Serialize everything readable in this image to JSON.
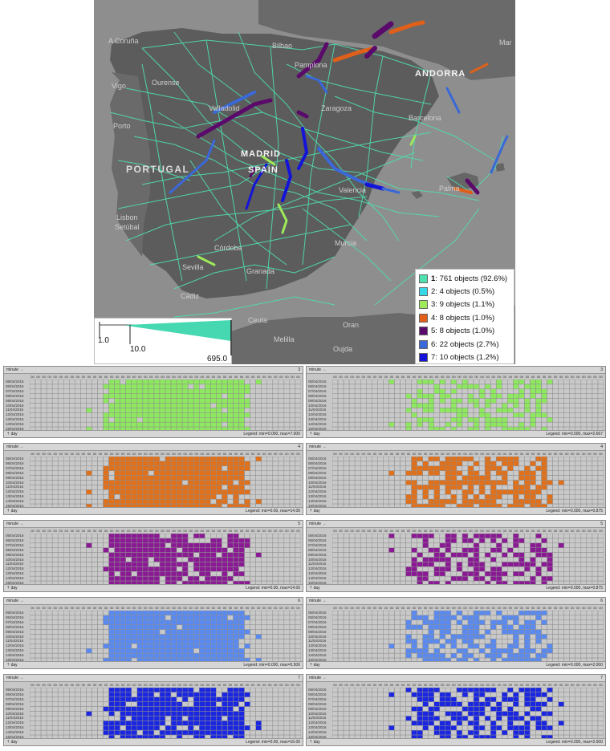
{
  "map": {
    "cities": [
      {
        "name": "A Coruña",
        "cls": "dim"
      },
      {
        "name": "Ourense",
        "cls": "dim"
      },
      {
        "name": "Vigo",
        "cls": "dim"
      },
      {
        "name": "Bilbao",
        "cls": "dim"
      },
      {
        "name": "Pamplona",
        "cls": "dim"
      },
      {
        "name": "ANDORRA",
        "cls": "big"
      },
      {
        "name": "Valladolid",
        "cls": "dim"
      },
      {
        "name": "Zaragoza",
        "cls": "dim"
      },
      {
        "name": "Barcelona",
        "cls": "dim"
      },
      {
        "name": "Porto",
        "cls": "dim"
      },
      {
        "name": "MADRID",
        "cls": "big"
      },
      {
        "name": "SPAIN",
        "cls": "big"
      },
      {
        "name": "PORTUGAL",
        "cls": "country"
      },
      {
        "name": "Valencia",
        "cls": "dim"
      },
      {
        "name": "Palma",
        "cls": "dim"
      },
      {
        "name": "Lisbon",
        "cls": "dim"
      },
      {
        "name": "Setúbal",
        "cls": "dim"
      },
      {
        "name": "Córdoba",
        "cls": "dim"
      },
      {
        "name": "Murcia",
        "cls": "dim"
      },
      {
        "name": "Sevilla",
        "cls": "dim"
      },
      {
        "name": "Granada",
        "cls": "dim"
      },
      {
        "name": "Cádiz",
        "cls": "dim"
      },
      {
        "name": "Ceuta",
        "cls": "dim"
      },
      {
        "name": "Melilla",
        "cls": "dim"
      },
      {
        "name": "Oran",
        "cls": "dim"
      },
      {
        "name": "Oujda",
        "cls": "dim"
      },
      {
        "name": "Mar",
        "cls": "dim"
      }
    ]
  },
  "clusters": [
    {
      "id": "1",
      "text": ": 761 objects (92.6%)",
      "color": "#4fe0b0",
      "bold": true
    },
    {
      "id": "2",
      "text": ": 4 objects (0.5%)",
      "color": "#38d8e8",
      "bold": false
    },
    {
      "id": "3",
      "text": ": 9 objects (1.1%)",
      "color": "#9eea5a",
      "bold": false
    },
    {
      "id": "4",
      "text": ": 8 objects (1.0%)",
      "color": "#e0601a",
      "bold": false
    },
    {
      "id": "5",
      "text": ": 8 objects (1.0%)",
      "color": "#5a0a6a",
      "bold": false
    },
    {
      "id": "6",
      "text": ": 22 objects (2.7%)",
      "color": "#3a68d8",
      "bold": false
    },
    {
      "id": "7",
      "text": ": 10 objects (1.2%)",
      "color": "#1414d8",
      "bold": false
    }
  ],
  "scale": {
    "labels": [
      "1.0",
      "10.0",
      "695.0"
    ],
    "color": "#46d8b0"
  },
  "mosaic": {
    "header_label": "minute →",
    "footer_label": "⇡ day",
    "hours": [
      "00",
      "00",
      "00",
      "00",
      "00",
      "00",
      "00",
      "00",
      "00",
      "00",
      "00",
      "00",
      "00",
      "00",
      "00",
      "00",
      "00",
      "00",
      "00",
      "00",
      "00",
      "00",
      "00",
      "00",
      "00",
      "00",
      "00",
      "00",
      "00",
      "00",
      "00",
      "00",
      "00",
      "00",
      "00",
      "00",
      "00",
      "00",
      "00",
      "00",
      "00",
      "00",
      "00",
      "00",
      "00",
      "00",
      "00",
      "00"
    ],
    "dates": [
      "05/04/2016",
      "06/04/2016",
      "07/04/2016",
      "08/04/2016",
      "09/04/2016",
      "10/04/2016",
      "11/04/2016",
      "12/04/2016",
      "13/04/2016",
      "14/04/2016",
      "15/04/2016"
    ],
    "panels": [
      {
        "num": "3",
        "legend": "Legend: min=0.000, max=7.000",
        "color": "#8ee860",
        "shape": "wide",
        "density": 0.95
      },
      {
        "num": "3",
        "legend": "Legend: min=0.000, max=2.667",
        "color": "#8ee860",
        "shape": "wide",
        "density": 0.55
      },
      {
        "num": "4",
        "legend": "Legend: min=0.00, max=14.00",
        "color": "#e0701a",
        "shape": "wide",
        "density": 0.95
      },
      {
        "num": "4",
        "legend": "Legend: min=0.000, max=0.875",
        "color": "#e0701a",
        "shape": "wide",
        "density": 0.6
      },
      {
        "num": "5",
        "legend": "Legend: min=0.00, max=14.00",
        "color": "#8a1a94",
        "shape": "wide",
        "density": 0.85
      },
      {
        "num": "5",
        "legend": "Legend: min=0.000, max=0.875",
        "color": "#8a1a94",
        "shape": "wide",
        "density": 0.55
      },
      {
        "num": "6",
        "legend": "Legend: min=0.000, max=5.500",
        "color": "#5a8af0",
        "shape": "wide",
        "density": 0.95
      },
      {
        "num": "6",
        "legend": "Legend: min=0.000, max=2.000",
        "color": "#5a8af0",
        "shape": "wide",
        "density": 0.6
      },
      {
        "num": "7",
        "legend": "Legend: min=0.00, max=16.00",
        "color": "#1a26e0",
        "shape": "wide",
        "density": 0.85
      },
      {
        "num": "7",
        "legend": "Legend: min=0.000, max=2.600",
        "color": "#1a26e0",
        "shape": "wide",
        "density": 0.55
      }
    ]
  }
}
